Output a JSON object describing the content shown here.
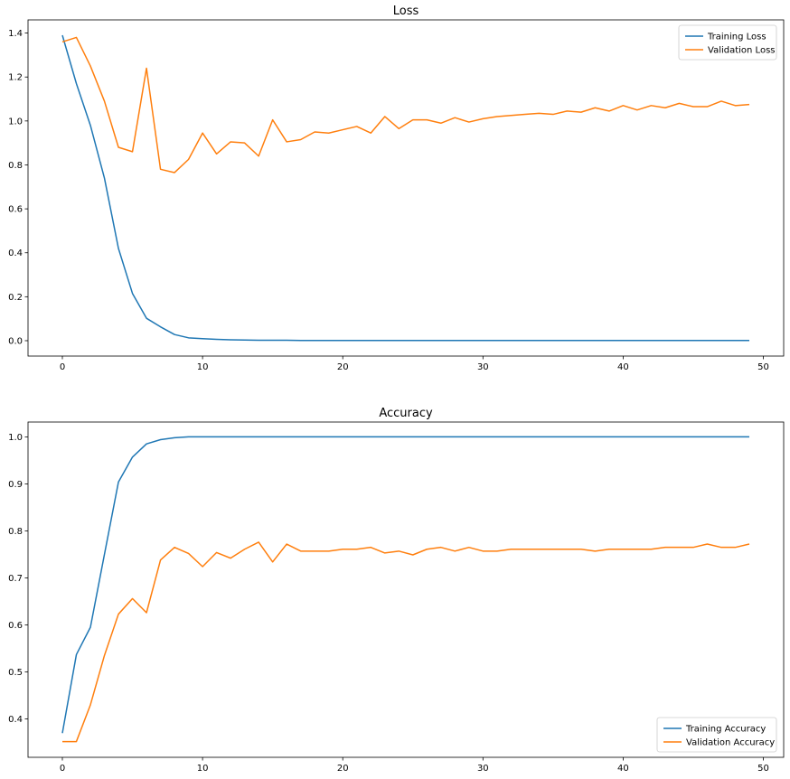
{
  "chart_data": [
    {
      "type": "line",
      "title": "Loss",
      "xlabel": "",
      "ylabel": "",
      "xlim": [
        -2.45,
        51.45
      ],
      "ylim": [
        -0.07,
        1.46
      ],
      "xticks": [
        0,
        10,
        20,
        30,
        40,
        50
      ],
      "xtick_labels": [
        "0",
        "10",
        "20",
        "30",
        "40",
        "50"
      ],
      "yticks": [
        0.0,
        0.2,
        0.4,
        0.6,
        0.8,
        1.0,
        1.2,
        1.4
      ],
      "ytick_labels": [
        "0.0",
        "0.2",
        "0.4",
        "0.6",
        "0.8",
        "1.0",
        "1.2",
        "1.4"
      ],
      "grid": false,
      "legend_position": "top-right",
      "x": [
        0,
        1,
        2,
        3,
        4,
        5,
        6,
        7,
        8,
        9,
        10,
        11,
        12,
        13,
        14,
        15,
        16,
        17,
        18,
        19,
        20,
        21,
        22,
        23,
        24,
        25,
        26,
        27,
        28,
        29,
        30,
        31,
        32,
        33,
        34,
        35,
        36,
        37,
        38,
        39,
        40,
        41,
        42,
        43,
        44,
        45,
        46,
        47,
        48,
        49
      ],
      "series": [
        {
          "name": "Training Loss",
          "color": "#1f77b4",
          "values": [
            1.39,
            1.17,
            0.98,
            0.74,
            0.42,
            0.215,
            0.102,
            0.063,
            0.028,
            0.013,
            0.009,
            0.006,
            0.004,
            0.003,
            0.002,
            0.002,
            0.002,
            0.001,
            0.001,
            0.001,
            0.001,
            0.001,
            0.001,
            0.001,
            0.001,
            0.001,
            0.001,
            0.001,
            0.001,
            0.001,
            0.001,
            0.001,
            0.001,
            0.001,
            0.001,
            0.001,
            0.001,
            0.001,
            0.001,
            0.001,
            0.001,
            0.001,
            0.001,
            0.001,
            0.001,
            0.001,
            0.001,
            0.001,
            0.001,
            0.001
          ]
        },
        {
          "name": "Validation Loss",
          "color": "#ff7f0e",
          "values": [
            1.36,
            1.38,
            1.25,
            1.09,
            0.88,
            0.86,
            1.24,
            0.78,
            0.765,
            0.825,
            0.945,
            0.85,
            0.905,
            0.9,
            0.84,
            1.005,
            0.905,
            0.915,
            0.95,
            0.945,
            0.96,
            0.975,
            0.945,
            1.02,
            0.965,
            1.005,
            1.005,
            0.99,
            1.015,
            0.995,
            1.01,
            1.02,
            1.025,
            1.03,
            1.035,
            1.03,
            1.045,
            1.04,
            1.06,
            1.045,
            1.07,
            1.05,
            1.07,
            1.06,
            1.08,
            1.065,
            1.065,
            1.09,
            1.07,
            1.075
          ]
        }
      ]
    },
    {
      "type": "line",
      "title": "Accuracy",
      "xlabel": "",
      "ylabel": "",
      "xlim": [
        -2.45,
        51.45
      ],
      "ylim": [
        0.3185,
        1.0315
      ],
      "xticks": [
        0,
        10,
        20,
        30,
        40,
        50
      ],
      "xtick_labels": [
        "0",
        "10",
        "20",
        "30",
        "40",
        "50"
      ],
      "yticks": [
        0.4,
        0.5,
        0.6,
        0.7,
        0.8,
        0.9,
        1.0
      ],
      "ytick_labels": [
        "0.4",
        "0.5",
        "0.6",
        "0.7",
        "0.8",
        "0.9",
        "1.0"
      ],
      "grid": false,
      "legend_position": "bottom-right",
      "x": [
        0,
        1,
        2,
        3,
        4,
        5,
        6,
        7,
        8,
        9,
        10,
        11,
        12,
        13,
        14,
        15,
        16,
        17,
        18,
        19,
        20,
        21,
        22,
        23,
        24,
        25,
        26,
        27,
        28,
        29,
        30,
        31,
        32,
        33,
        34,
        35,
        36,
        37,
        38,
        39,
        40,
        41,
        42,
        43,
        44,
        45,
        46,
        47,
        48,
        49
      ],
      "series": [
        {
          "name": "Training Accuracy",
          "color": "#1f77b4",
          "values": [
            0.37,
            0.537,
            0.595,
            0.75,
            0.904,
            0.957,
            0.985,
            0.994,
            0.998,
            1.0,
            1.0,
            1.0,
            1.0,
            1.0,
            1.0,
            1.0,
            1.0,
            1.0,
            1.0,
            1.0,
            1.0,
            1.0,
            1.0,
            1.0,
            1.0,
            1.0,
            1.0,
            1.0,
            1.0,
            1.0,
            1.0,
            1.0,
            1.0,
            1.0,
            1.0,
            1.0,
            1.0,
            1.0,
            1.0,
            1.0,
            1.0,
            1.0,
            1.0,
            1.0,
            1.0,
            1.0,
            1.0,
            1.0,
            1.0,
            1.0
          ]
        },
        {
          "name": "Validation Accuracy",
          "color": "#ff7f0e",
          "values": [
            0.352,
            0.352,
            0.43,
            0.535,
            0.623,
            0.656,
            0.626,
            0.738,
            0.765,
            0.752,
            0.724,
            0.754,
            0.742,
            0.761,
            0.776,
            0.734,
            0.772,
            0.757,
            0.757,
            0.757,
            0.761,
            0.761,
            0.765,
            0.753,
            0.757,
            0.749,
            0.761,
            0.765,
            0.757,
            0.765,
            0.757,
            0.757,
            0.761,
            0.761,
            0.761,
            0.761,
            0.761,
            0.761,
            0.757,
            0.761,
            0.761,
            0.761,
            0.761,
            0.765,
            0.765,
            0.765,
            0.772,
            0.765,
            0.765,
            0.772
          ]
        }
      ]
    }
  ]
}
